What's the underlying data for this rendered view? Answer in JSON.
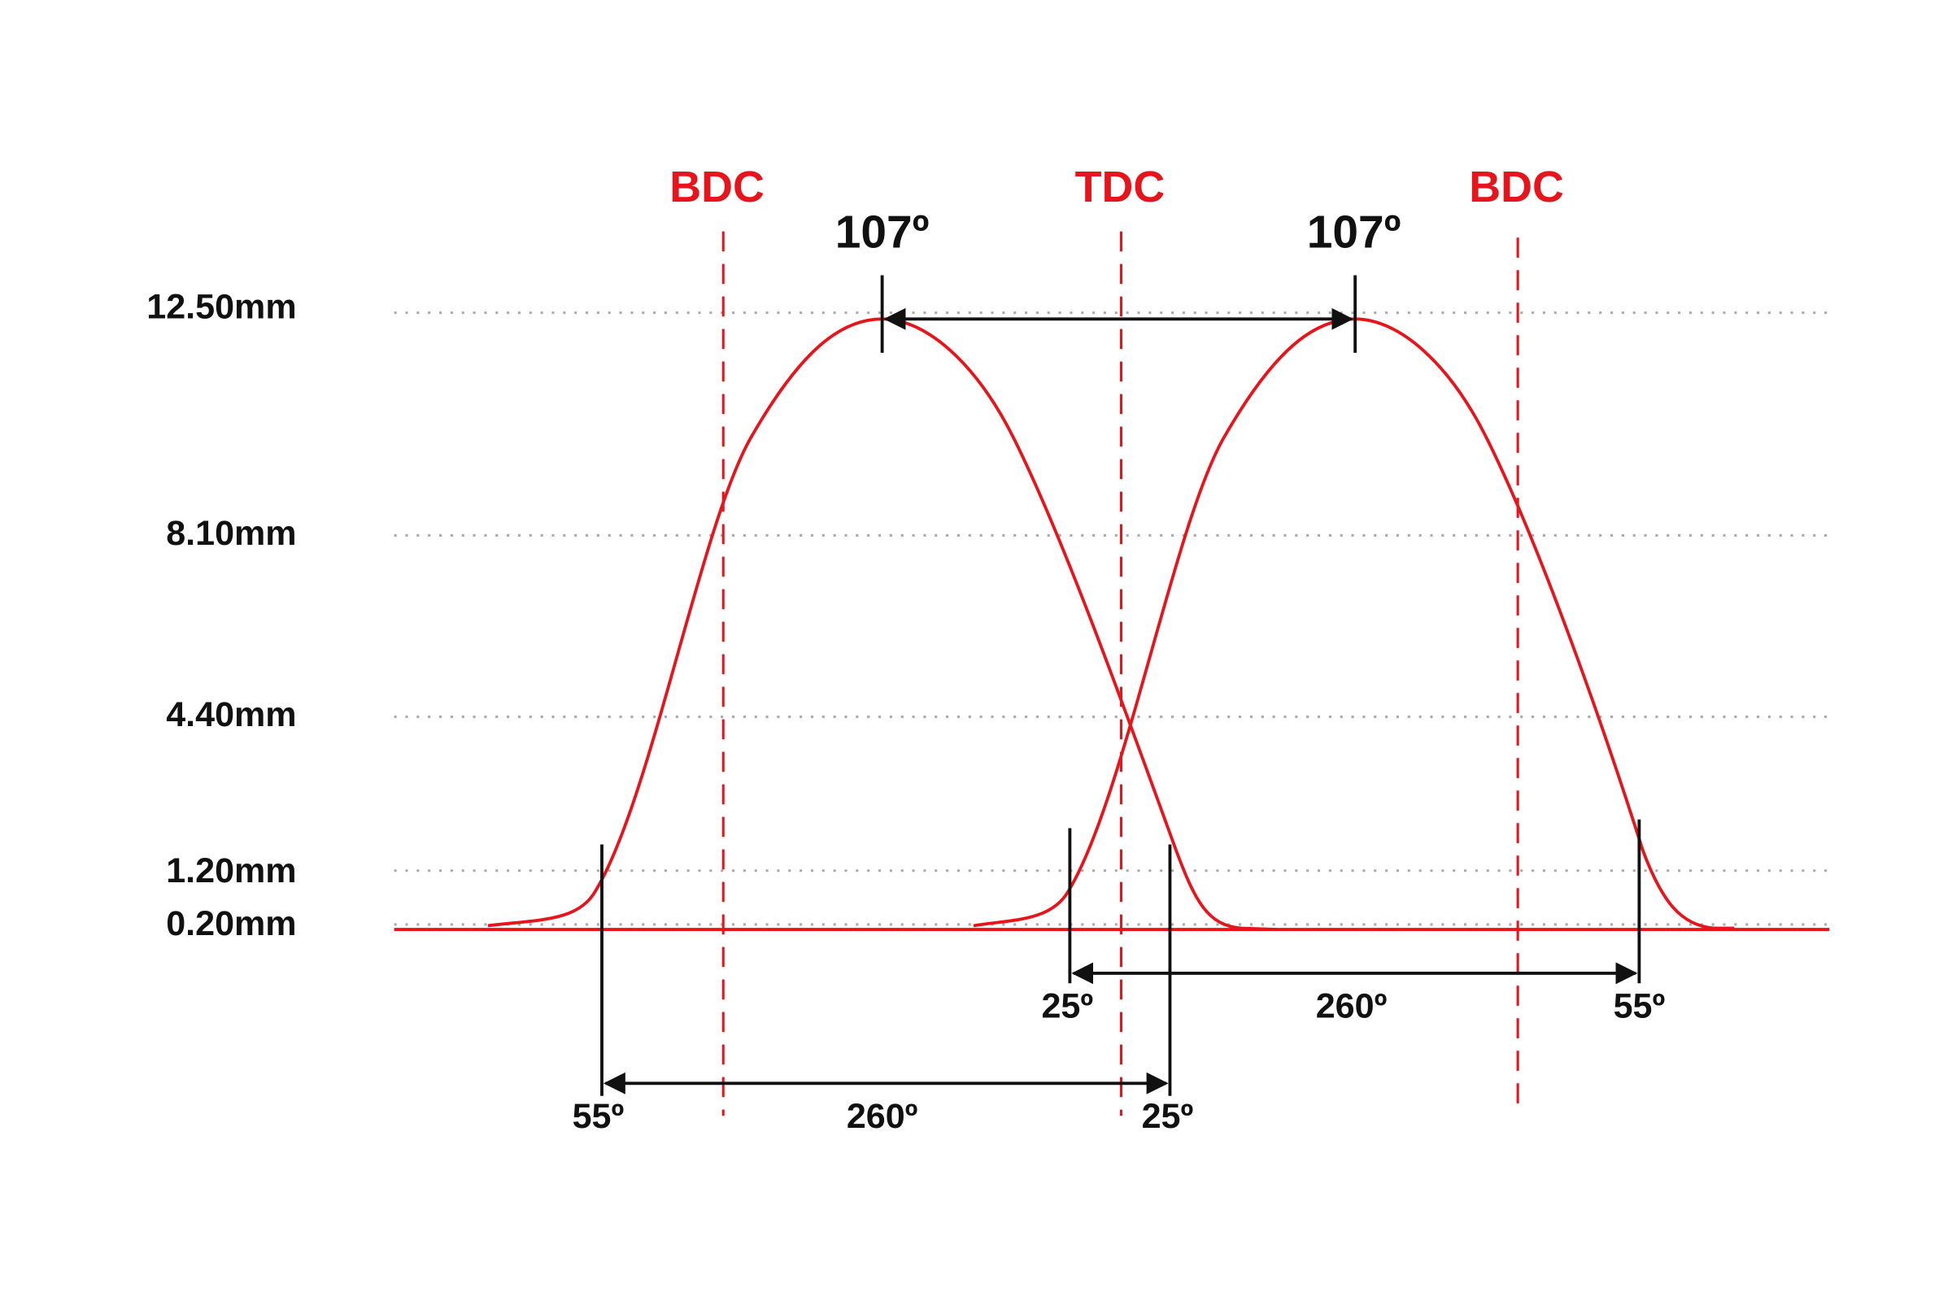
{
  "markers": [
    "BDC",
    "TDC",
    "BDC"
  ],
  "lift_levels": [
    "12.50mm",
    "8.10mm",
    "4.40mm",
    "1.20mm",
    "0.20mm"
  ],
  "peaks": [
    "107º",
    "107º"
  ],
  "durations": [
    {
      "open": "55º",
      "total": "260º",
      "close": "25º"
    },
    {
      "open": "25º",
      "total": "260º",
      "close": "55º"
    }
  ]
}
